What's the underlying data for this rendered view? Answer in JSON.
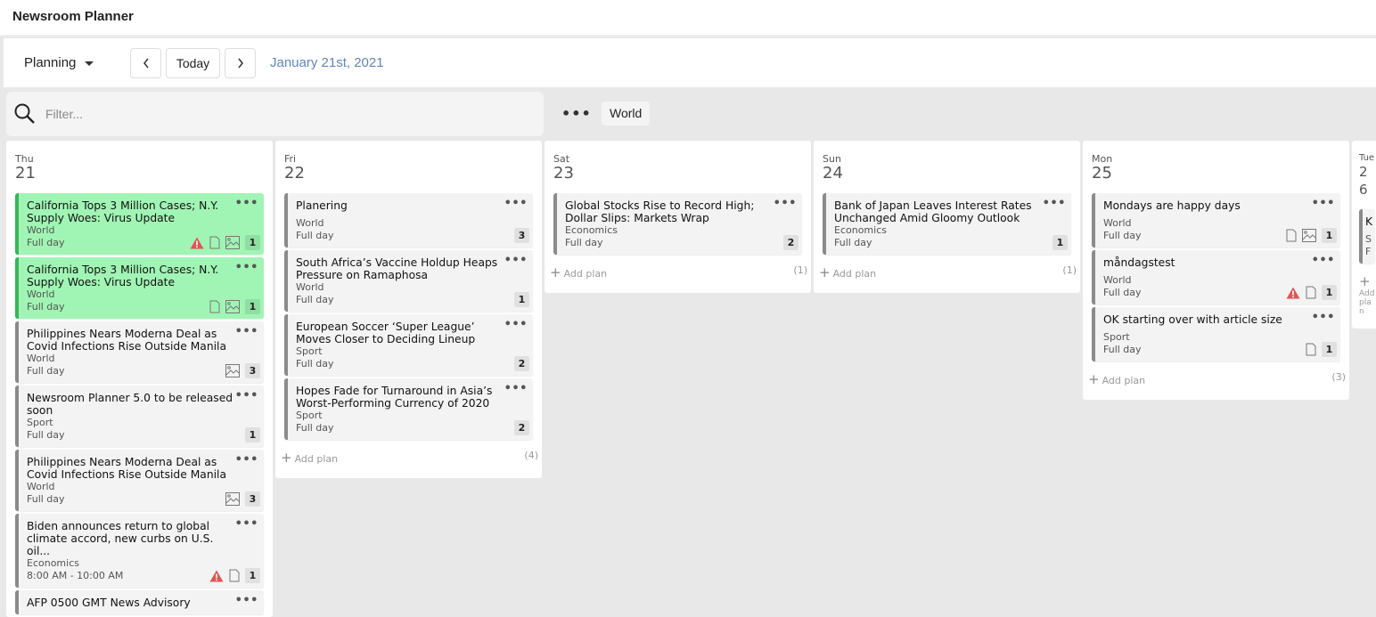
{
  "app": {
    "title": "Newsroom Planner"
  },
  "toolbar": {
    "view": "Planning",
    "today": "Today",
    "prev_icon": "chevron-left",
    "next_icon": "chevron-right",
    "date": "January 21st, 2021"
  },
  "filter": {
    "placeholder": "Filter...",
    "more": "•••",
    "chip": "World"
  },
  "add_label": "Add plan",
  "colors": {
    "green_card": "#a0f5b4",
    "green_border": "#3cb35a",
    "warning": "#e05555",
    "date_link": "#5f86b8"
  },
  "days": [
    {
      "name": "Thu",
      "num": "21",
      "count": "",
      "cards": [
        {
          "title": "California Tops 3 Million Cases; N.Y. Supply Woes: Virus Update",
          "section": "World",
          "time": "Full day",
          "warn": true,
          "doc": true,
          "img": true,
          "count": "1",
          "green": true
        },
        {
          "title": "California Tops 3 Million Cases; N.Y. Supply Woes: Virus Update",
          "section": "World",
          "time": "Full day",
          "warn": false,
          "doc": true,
          "img": true,
          "count": "1",
          "green": true
        },
        {
          "title": "Philippines Nears Moderna Deal as Covid Infections Rise Outside Manila",
          "section": "World",
          "time": "Full day",
          "warn": false,
          "doc": false,
          "img": true,
          "count": "3"
        },
        {
          "title": "Newsroom Planner 5.0 to be released soon",
          "section": "Sport",
          "time": "Full day",
          "warn": false,
          "doc": false,
          "img": false,
          "count": "1"
        },
        {
          "title": "Philippines Nears Moderna Deal as Covid Infections Rise Outside Manila",
          "section": "World",
          "time": "Full day",
          "warn": false,
          "doc": false,
          "img": true,
          "count": "3"
        },
        {
          "title": "Biden announces return to global climate accord, new curbs on U.S. oil...",
          "section": "Economics",
          "time": "8:00 AM - 10:00 AM",
          "warn": true,
          "doc": true,
          "img": false,
          "count": "1"
        },
        {
          "title": "AFP 0500 GMT News Advisory",
          "section": "",
          "time": "",
          "warn": false,
          "doc": false,
          "img": false,
          "count": ""
        }
      ]
    },
    {
      "name": "Fri",
      "num": "22",
      "count": "(4)",
      "cards": [
        {
          "title": "Planering",
          "section": "World",
          "time": "Full day",
          "count": "3",
          "single": true
        },
        {
          "title": "South Africa’s Vaccine Holdup Heaps Pressure on Ramaphosa",
          "section": "World",
          "time": "Full day",
          "count": "1"
        },
        {
          "title": "European Soccer ‘Super League’ Moves Closer to Deciding Lineup",
          "section": "Sport",
          "time": "Full day",
          "count": "2"
        },
        {
          "title": "Hopes Fade for Turnaround in Asia’s Worst-Performing Currency of 2020",
          "section": "Sport",
          "time": "Full day",
          "count": "2"
        }
      ]
    },
    {
      "name": "Sat",
      "num": "23",
      "count": "(1)",
      "cards": [
        {
          "title": "Global Stocks Rise to Record High; Dollar Slips: Markets Wrap",
          "section": "Economics",
          "time": "Full day",
          "count": "2"
        }
      ]
    },
    {
      "name": "Sun",
      "num": "24",
      "count": "(1)",
      "cards": [
        {
          "title": "Bank of Japan Leaves Interest Rates Unchanged Amid Gloomy Outlook",
          "section": "Economics",
          "time": "Full day",
          "count": "1"
        }
      ]
    },
    {
      "name": "Mon",
      "num": "25",
      "count": "(3)",
      "cards": [
        {
          "title": "Mondays are happy days",
          "section": "World",
          "time": "Full day",
          "doc": true,
          "img": true,
          "count": "1",
          "single": true
        },
        {
          "title": "måndagstest",
          "section": "World",
          "time": "Full day",
          "warn": true,
          "doc": true,
          "count": "1",
          "single": true
        },
        {
          "title": "OK starting over with article size",
          "section": "Sport",
          "time": "Full day",
          "doc": true,
          "count": "1",
          "single": true
        }
      ]
    },
    {
      "name": "Tue",
      "num": "26",
      "count": "",
      "cards": [
        {
          "title": "K",
          "section": "S",
          "time": "F",
          "count": "",
          "single": true
        }
      ]
    }
  ]
}
